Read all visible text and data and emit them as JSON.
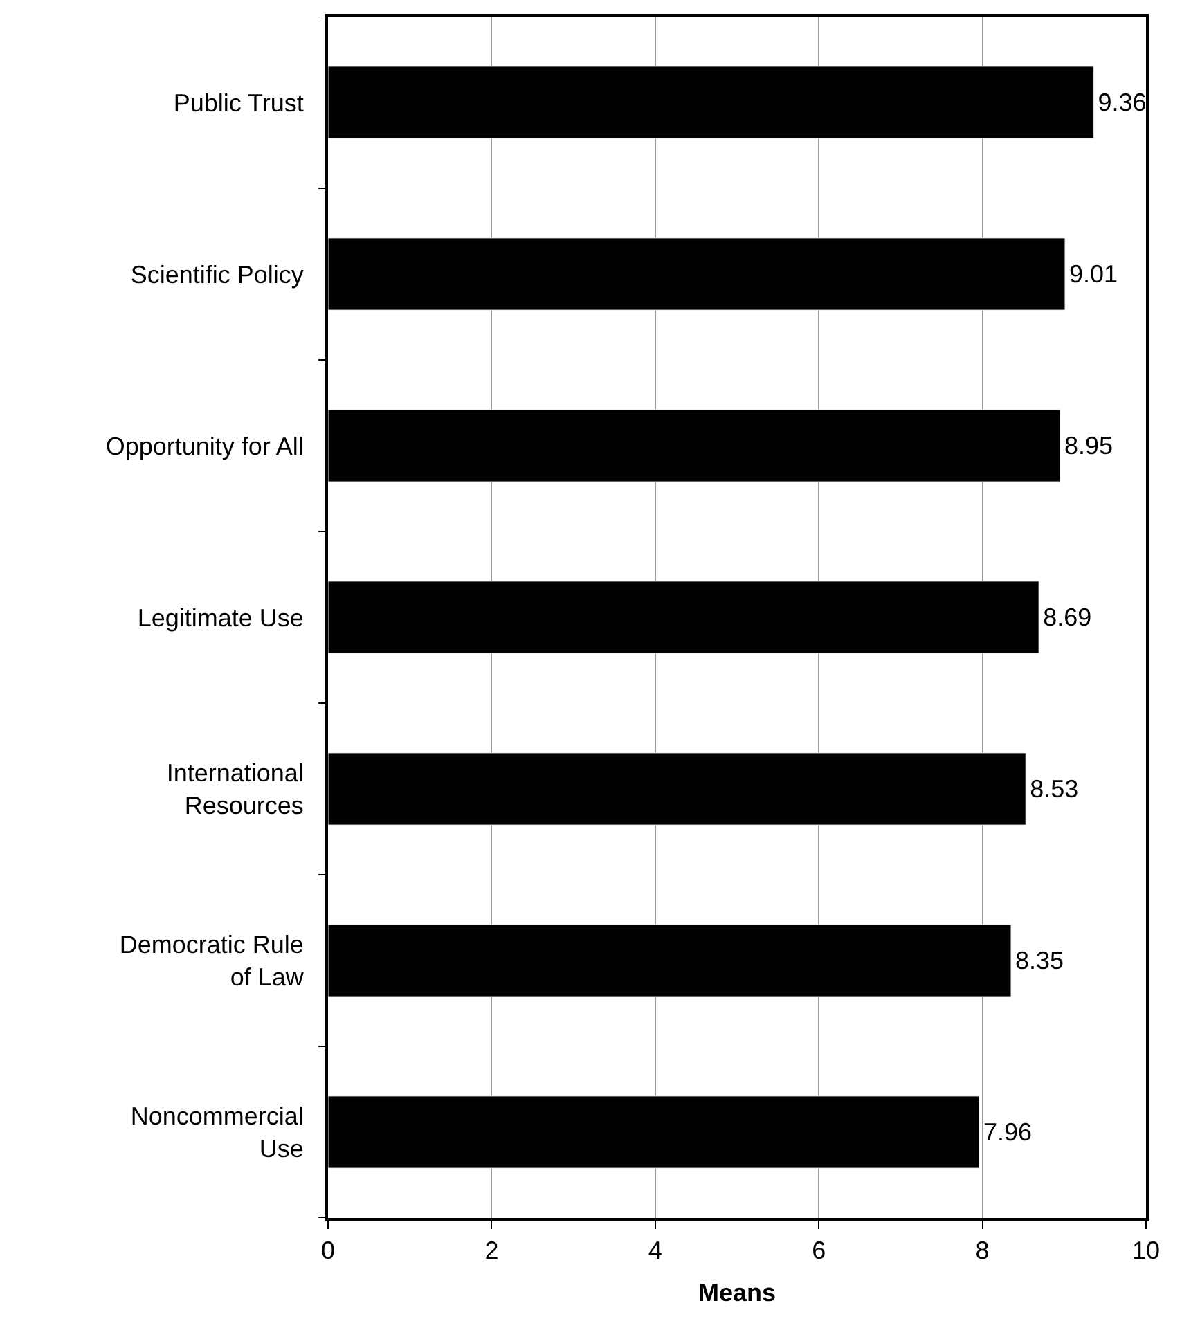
{
  "chart_data": {
    "type": "bar",
    "orientation": "horizontal",
    "xlabel": "Means",
    "categories": [
      "Public Trust",
      "Scientific Policy",
      "Opportunity for All",
      "Legitimate Use",
      "International\nResources",
      "Democratic Rule\nof Law",
      "Noncommercial\nUse"
    ],
    "values": [
      9.36,
      9.01,
      8.95,
      8.69,
      8.53,
      8.35,
      7.96
    ],
    "color": "#000000",
    "data_labels": true,
    "xlim": [
      0,
      10
    ],
    "xticks": [
      0,
      2,
      4,
      6,
      8,
      10
    ],
    "grid": "x",
    "legend": false
  }
}
